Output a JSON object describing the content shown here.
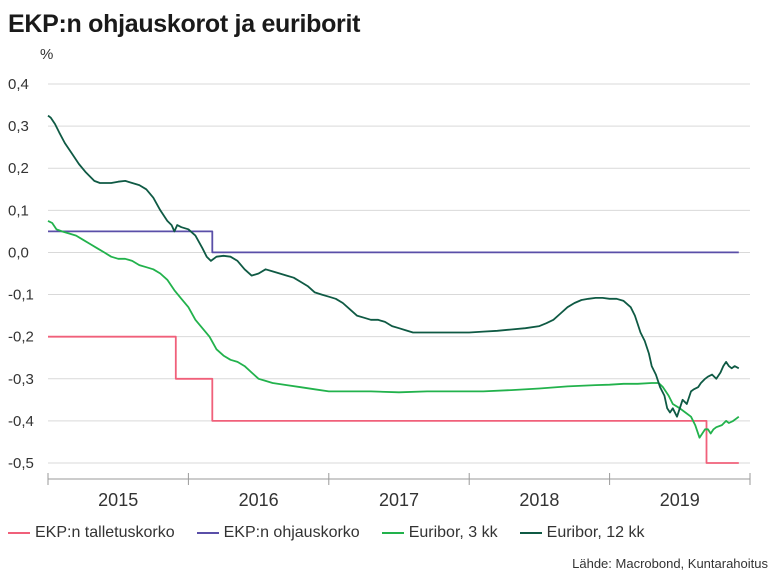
{
  "title": "EKP:n ohjauskorot ja euriborit",
  "source": "Lähde: Macrobond, Kuntarahoitus",
  "chart_data": {
    "type": "line",
    "title": "EKP:n ohjauskorot ja euriborit",
    "ylabel": "%",
    "xlim": [
      2014.5,
      2019.5
    ],
    "ylim": [
      -0.5,
      0.4
    ],
    "yticks": [
      0.4,
      0.3,
      0.2,
      0.1,
      0.0,
      -0.1,
      -0.2,
      -0.3,
      -0.4,
      -0.5
    ],
    "ytick_labels": [
      "0,4",
      "0,3",
      "0,2",
      "0,1",
      "0,0",
      "-0,1",
      "-0,2",
      "-0,3",
      "-0,4",
      "-0,5"
    ],
    "xtick_labels": [
      {
        "x": 2015,
        "label": "2015"
      },
      {
        "x": 2016,
        "label": "2016"
      },
      {
        "x": 2017,
        "label": "2017"
      },
      {
        "x": 2018,
        "label": "2018"
      },
      {
        "x": 2019,
        "label": "2019"
      }
    ],
    "year_boundaries": [
      2014.5,
      2015.5,
      2016.5,
      2017.5,
      2018.5,
      2019.5
    ],
    "grid": true,
    "legend_position": "bottom",
    "series": [
      {
        "name": "EKP:n talletuskorko",
        "color": "#f0607a",
        "step": true,
        "points": [
          [
            2014.5,
            -0.2
          ],
          [
            2015.41,
            -0.2
          ],
          [
            2015.41,
            -0.3
          ],
          [
            2015.67,
            -0.3
          ],
          [
            2015.67,
            -0.4
          ],
          [
            2019.19,
            -0.4
          ],
          [
            2019.19,
            -0.5
          ],
          [
            2019.42,
            -0.5
          ]
        ]
      },
      {
        "name": "EKP:n ohjauskorko",
        "color": "#5a4fa8",
        "step": true,
        "points": [
          [
            2014.5,
            0.05
          ],
          [
            2015.67,
            0.05
          ],
          [
            2015.67,
            0.0
          ],
          [
            2019.42,
            0.0
          ]
        ]
      },
      {
        "name": "Euribor, 3 kk",
        "color": "#22b24c",
        "points": [
          [
            2014.5,
            0.075
          ],
          [
            2014.53,
            0.07
          ],
          [
            2014.56,
            0.055
          ],
          [
            2014.6,
            0.05
          ],
          [
            2014.65,
            0.045
          ],
          [
            2014.7,
            0.04
          ],
          [
            2014.75,
            0.03
          ],
          [
            2014.8,
            0.02
          ],
          [
            2014.85,
            0.01
          ],
          [
            2014.9,
            0.0
          ],
          [
            2014.95,
            -0.01
          ],
          [
            2015.0,
            -0.015
          ],
          [
            2015.05,
            -0.015
          ],
          [
            2015.1,
            -0.02
          ],
          [
            2015.15,
            -0.03
          ],
          [
            2015.2,
            -0.035
          ],
          [
            2015.25,
            -0.04
          ],
          [
            2015.3,
            -0.05
          ],
          [
            2015.35,
            -0.065
          ],
          [
            2015.4,
            -0.09
          ],
          [
            2015.45,
            -0.11
          ],
          [
            2015.5,
            -0.13
          ],
          [
            2015.55,
            -0.16
          ],
          [
            2015.6,
            -0.18
          ],
          [
            2015.65,
            -0.2
          ],
          [
            2015.7,
            -0.23
          ],
          [
            2015.75,
            -0.245
          ],
          [
            2015.8,
            -0.255
          ],
          [
            2015.85,
            -0.26
          ],
          [
            2015.9,
            -0.27
          ],
          [
            2015.95,
            -0.285
          ],
          [
            2016.0,
            -0.3
          ],
          [
            2016.05,
            -0.305
          ],
          [
            2016.1,
            -0.31
          ],
          [
            2016.2,
            -0.315
          ],
          [
            2016.3,
            -0.32
          ],
          [
            2016.4,
            -0.325
          ],
          [
            2016.5,
            -0.33
          ],
          [
            2016.6,
            -0.33
          ],
          [
            2016.8,
            -0.33
          ],
          [
            2017.0,
            -0.332
          ],
          [
            2017.2,
            -0.33
          ],
          [
            2017.4,
            -0.33
          ],
          [
            2017.6,
            -0.33
          ],
          [
            2017.8,
            -0.327
          ],
          [
            2018.0,
            -0.323
          ],
          [
            2018.2,
            -0.318
          ],
          [
            2018.4,
            -0.315
          ],
          [
            2018.5,
            -0.314
          ],
          [
            2018.6,
            -0.312
          ],
          [
            2018.7,
            -0.312
          ],
          [
            2018.8,
            -0.31
          ],
          [
            2018.85,
            -0.31
          ],
          [
            2018.88,
            -0.32
          ],
          [
            2018.92,
            -0.34
          ],
          [
            2018.95,
            -0.36
          ],
          [
            2019.0,
            -0.37
          ],
          [
            2019.04,
            -0.38
          ],
          [
            2019.08,
            -0.39
          ],
          [
            2019.11,
            -0.41
          ],
          [
            2019.14,
            -0.44
          ],
          [
            2019.16,
            -0.43
          ],
          [
            2019.18,
            -0.42
          ],
          [
            2019.2,
            -0.42
          ],
          [
            2019.22,
            -0.43
          ],
          [
            2019.24,
            -0.42
          ],
          [
            2019.26,
            -0.415
          ],
          [
            2019.3,
            -0.41
          ],
          [
            2019.33,
            -0.4
          ],
          [
            2019.35,
            -0.405
          ],
          [
            2019.38,
            -0.4
          ],
          [
            2019.4,
            -0.395
          ],
          [
            2019.42,
            -0.39
          ]
        ]
      },
      {
        "name": "Euribor, 12 kk",
        "color": "#0f5a44",
        "points": [
          [
            2014.5,
            0.325
          ],
          [
            2014.52,
            0.32
          ],
          [
            2014.55,
            0.305
          ],
          [
            2014.58,
            0.285
          ],
          [
            2014.62,
            0.26
          ],
          [
            2014.67,
            0.235
          ],
          [
            2014.72,
            0.21
          ],
          [
            2014.77,
            0.19
          ],
          [
            2014.8,
            0.18
          ],
          [
            2014.83,
            0.17
          ],
          [
            2014.87,
            0.165
          ],
          [
            2014.9,
            0.165
          ],
          [
            2014.95,
            0.165
          ],
          [
            2015.0,
            0.168
          ],
          [
            2015.05,
            0.17
          ],
          [
            2015.1,
            0.165
          ],
          [
            2015.15,
            0.16
          ],
          [
            2015.2,
            0.15
          ],
          [
            2015.25,
            0.13
          ],
          [
            2015.3,
            0.1
          ],
          [
            2015.35,
            0.075
          ],
          [
            2015.38,
            0.065
          ],
          [
            2015.4,
            0.05
          ],
          [
            2015.42,
            0.065
          ],
          [
            2015.45,
            0.06
          ],
          [
            2015.5,
            0.055
          ],
          [
            2015.55,
            0.04
          ],
          [
            2015.6,
            0.01
          ],
          [
            2015.63,
            -0.01
          ],
          [
            2015.66,
            -0.02
          ],
          [
            2015.7,
            -0.01
          ],
          [
            2015.75,
            -0.008
          ],
          [
            2015.8,
            -0.01
          ],
          [
            2015.85,
            -0.02
          ],
          [
            2015.9,
            -0.04
          ],
          [
            2015.95,
            -0.055
          ],
          [
            2016.0,
            -0.05
          ],
          [
            2016.05,
            -0.04
          ],
          [
            2016.1,
            -0.045
          ],
          [
            2016.15,
            -0.05
          ],
          [
            2016.2,
            -0.055
          ],
          [
            2016.25,
            -0.06
          ],
          [
            2016.3,
            -0.07
          ],
          [
            2016.35,
            -0.08
          ],
          [
            2016.4,
            -0.095
          ],
          [
            2016.45,
            -0.1
          ],
          [
            2016.5,
            -0.105
          ],
          [
            2016.55,
            -0.11
          ],
          [
            2016.6,
            -0.12
          ],
          [
            2016.65,
            -0.135
          ],
          [
            2016.7,
            -0.15
          ],
          [
            2016.75,
            -0.155
          ],
          [
            2016.8,
            -0.16
          ],
          [
            2016.85,
            -0.16
          ],
          [
            2016.9,
            -0.165
          ],
          [
            2016.95,
            -0.175
          ],
          [
            2017.0,
            -0.18
          ],
          [
            2017.05,
            -0.185
          ],
          [
            2017.1,
            -0.19
          ],
          [
            2017.2,
            -0.19
          ],
          [
            2017.3,
            -0.19
          ],
          [
            2017.4,
            -0.19
          ],
          [
            2017.5,
            -0.19
          ],
          [
            2017.6,
            -0.188
          ],
          [
            2017.7,
            -0.186
          ],
          [
            2017.8,
            -0.183
          ],
          [
            2017.9,
            -0.18
          ],
          [
            2018.0,
            -0.175
          ],
          [
            2018.05,
            -0.168
          ],
          [
            2018.1,
            -0.16
          ],
          [
            2018.15,
            -0.145
          ],
          [
            2018.2,
            -0.13
          ],
          [
            2018.25,
            -0.12
          ],
          [
            2018.3,
            -0.113
          ],
          [
            2018.35,
            -0.11
          ],
          [
            2018.4,
            -0.108
          ],
          [
            2018.45,
            -0.108
          ],
          [
            2018.5,
            -0.11
          ],
          [
            2018.55,
            -0.11
          ],
          [
            2018.6,
            -0.115
          ],
          [
            2018.65,
            -0.13
          ],
          [
            2018.68,
            -0.15
          ],
          [
            2018.7,
            -0.17
          ],
          [
            2018.72,
            -0.19
          ],
          [
            2018.75,
            -0.21
          ],
          [
            2018.78,
            -0.24
          ],
          [
            2018.8,
            -0.27
          ],
          [
            2018.83,
            -0.29
          ],
          [
            2018.86,
            -0.32
          ],
          [
            2018.89,
            -0.34
          ],
          [
            2018.91,
            -0.37
          ],
          [
            2018.93,
            -0.38
          ],
          [
            2018.95,
            -0.37
          ],
          [
            2018.98,
            -0.39
          ],
          [
            2019.0,
            -0.37
          ],
          [
            2019.02,
            -0.35
          ],
          [
            2019.05,
            -0.36
          ],
          [
            2019.08,
            -0.33
          ],
          [
            2019.1,
            -0.325
          ],
          [
            2019.13,
            -0.32
          ],
          [
            2019.15,
            -0.31
          ],
          [
            2019.18,
            -0.3
          ],
          [
            2019.2,
            -0.295
          ],
          [
            2019.23,
            -0.29
          ],
          [
            2019.26,
            -0.3
          ],
          [
            2019.29,
            -0.285
          ],
          [
            2019.31,
            -0.27
          ],
          [
            2019.33,
            -0.26
          ],
          [
            2019.35,
            -0.27
          ],
          [
            2019.37,
            -0.275
          ],
          [
            2019.39,
            -0.27
          ],
          [
            2019.42,
            -0.275
          ]
        ]
      }
    ]
  }
}
